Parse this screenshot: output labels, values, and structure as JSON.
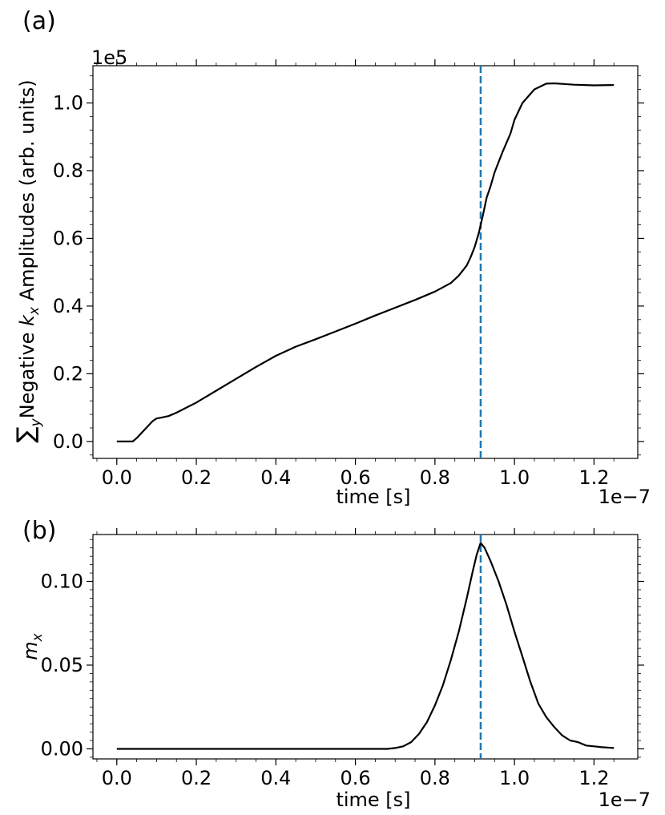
{
  "chart_data": [
    {
      "type": "line",
      "panel_label": "(a)",
      "xlabel": "time [s]",
      "ylabel_prefix": "Negative ",
      "ylabel_symbol": "k",
      "ylabel_subscript": "x",
      "ylabel_suffix": " Amplitudes (arb. units)",
      "ylabel_sum": "∑",
      "ylabel_sum_sub": "y",
      "x_offset_text": "1e−7",
      "y_offset_text": "1e5",
      "xlim": [
        -0.06,
        1.31
      ],
      "ylim": [
        -0.05,
        1.11
      ],
      "xticks": [
        0.0,
        0.2,
        0.4,
        0.6,
        0.8,
        1.0,
        1.2
      ],
      "xtick_labels": [
        "0.0",
        "0.2",
        "0.4",
        "0.6",
        "0.8",
        "1.0",
        "1.2"
      ],
      "yticks": [
        0.0,
        0.2,
        0.4,
        0.6,
        0.8,
        1.0
      ],
      "ytick_labels": [
        "0.0",
        "0.2",
        "0.4",
        "0.6",
        "0.8",
        "1.0"
      ],
      "vline": {
        "x": 0.915,
        "color": "#1f77b4",
        "style": "dashed"
      },
      "series": [
        {
          "name": "amplitude",
          "color": "#000000",
          "x": [
            0.0,
            0.04,
            0.05,
            0.07,
            0.09,
            0.1,
            0.11,
            0.13,
            0.15,
            0.2,
            0.25,
            0.3,
            0.35,
            0.4,
            0.45,
            0.5,
            0.55,
            0.6,
            0.65,
            0.7,
            0.75,
            0.8,
            0.84,
            0.86,
            0.88,
            0.89,
            0.9,
            0.91,
            0.92,
            0.93,
            0.94,
            0.95,
            0.97,
            0.99,
            1.0,
            1.02,
            1.05,
            1.08,
            1.1,
            1.15,
            1.2,
            1.25
          ],
          "y": [
            0.0,
            0.0,
            0.01,
            0.035,
            0.06,
            0.068,
            0.07,
            0.075,
            0.085,
            0.115,
            0.15,
            0.185,
            0.22,
            0.253,
            0.28,
            0.302,
            0.325,
            0.348,
            0.372,
            0.395,
            0.418,
            0.443,
            0.468,
            0.49,
            0.52,
            0.545,
            0.575,
            0.615,
            0.665,
            0.72,
            0.755,
            0.795,
            0.855,
            0.91,
            0.95,
            1.0,
            1.04,
            1.057,
            1.058,
            1.054,
            1.052,
            1.053
          ]
        }
      ]
    },
    {
      "type": "line",
      "panel_label": "(b)",
      "xlabel": "time [s]",
      "ylabel_symbol": "m",
      "ylabel_subscript": "x",
      "x_offset_text": "1e−7",
      "xlim": [
        -0.06,
        1.31
      ],
      "ylim": [
        -0.006,
        0.128
      ],
      "xticks": [
        0.0,
        0.2,
        0.4,
        0.6,
        0.8,
        1.0,
        1.2
      ],
      "xtick_labels": [
        "0.0",
        "0.2",
        "0.4",
        "0.6",
        "0.8",
        "1.0",
        "1.2"
      ],
      "yticks": [
        0.0,
        0.05,
        0.1
      ],
      "ytick_labels": [
        "0.00",
        "0.05",
        "0.10"
      ],
      "vline": {
        "x": 0.915,
        "color": "#1f77b4",
        "style": "dashed"
      },
      "series": [
        {
          "name": "m_x",
          "color": "#000000",
          "x": [
            0.0,
            0.2,
            0.4,
            0.6,
            0.68,
            0.7,
            0.72,
            0.74,
            0.76,
            0.78,
            0.8,
            0.82,
            0.84,
            0.86,
            0.88,
            0.895,
            0.905,
            0.915,
            0.925,
            0.94,
            0.96,
            0.98,
            1.0,
            1.02,
            1.04,
            1.06,
            1.08,
            1.1,
            1.12,
            1.14,
            1.16,
            1.18,
            1.2,
            1.22,
            1.25
          ],
          "y": [
            0.0,
            0.0,
            0.0,
            0.0,
            0.0,
            0.0005,
            0.0015,
            0.004,
            0.009,
            0.016,
            0.026,
            0.038,
            0.053,
            0.07,
            0.09,
            0.106,
            0.116,
            0.123,
            0.12,
            0.112,
            0.1,
            0.086,
            0.07,
            0.055,
            0.04,
            0.027,
            0.019,
            0.013,
            0.008,
            0.005,
            0.004,
            0.002,
            0.0015,
            0.001,
            0.0005
          ]
        }
      ]
    }
  ]
}
